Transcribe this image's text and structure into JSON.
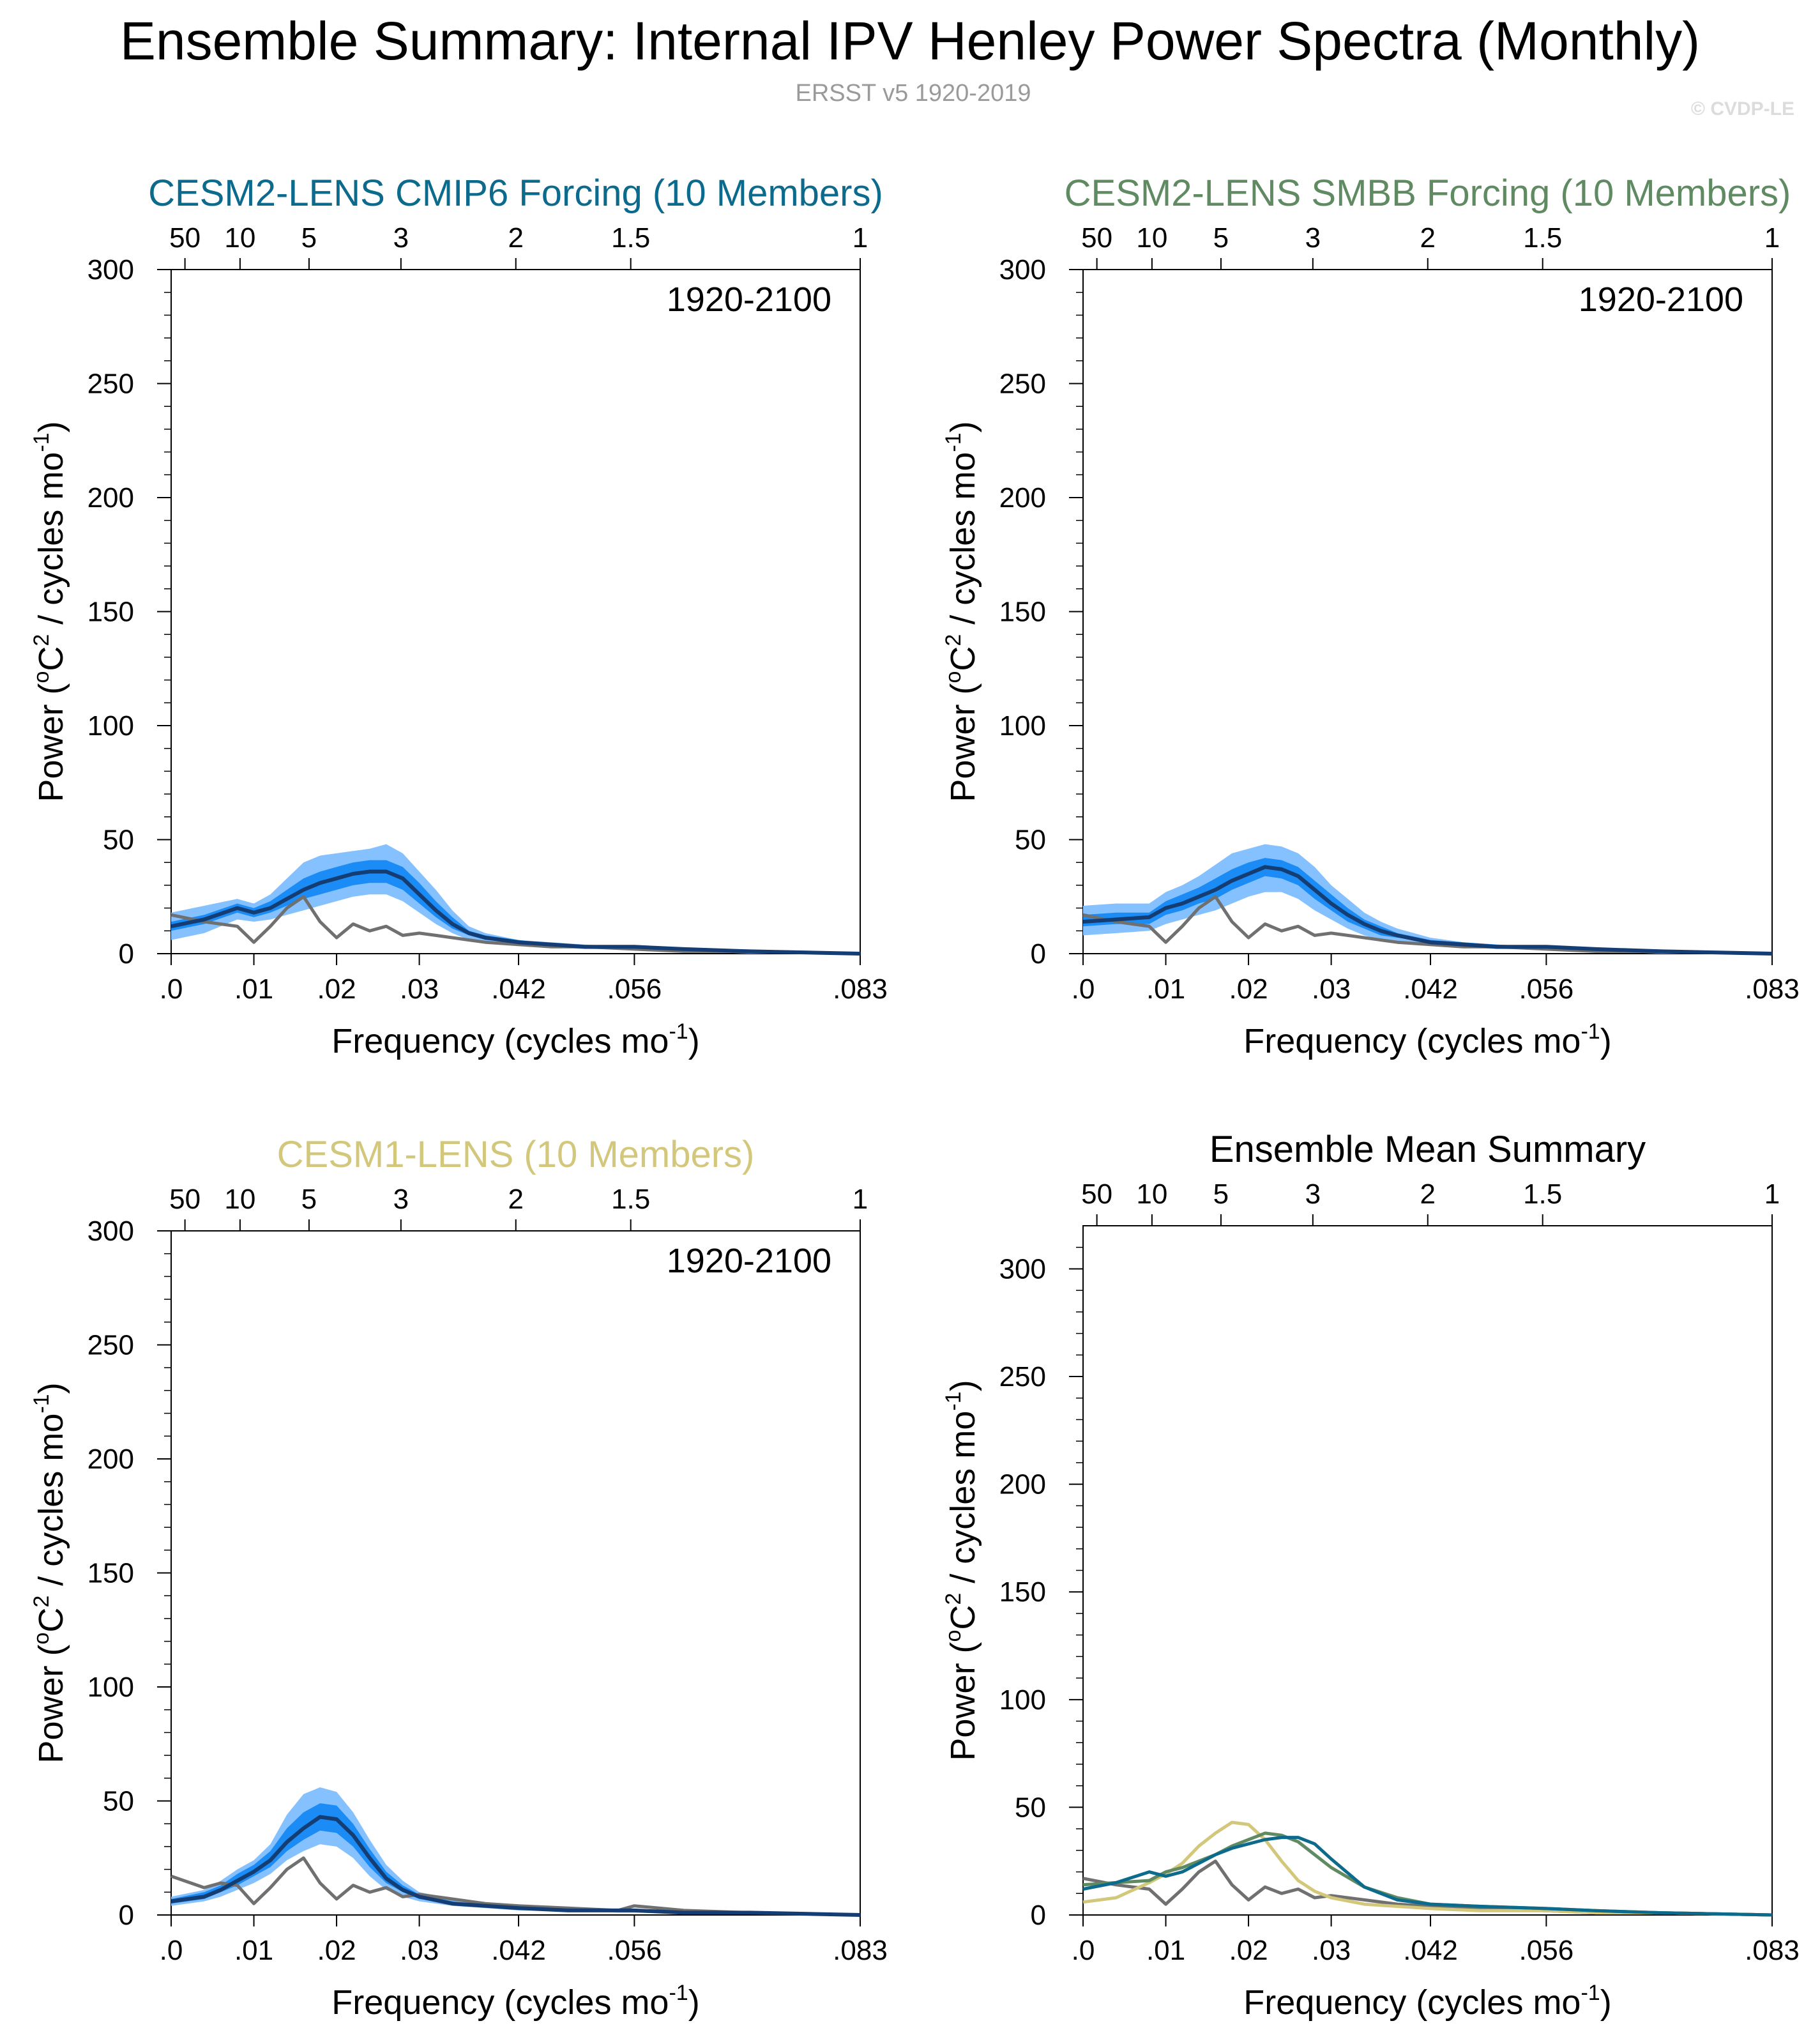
{
  "figure": {
    "title": "Ensemble Summary: Internal IPV Henley Power Spectra (Monthly)",
    "subtitle": "ERSST v5 1920-2019",
    "credit": "© CVDP-LE"
  },
  "colors": {
    "obs": "#707070",
    "cmip6": "#0c6a8c",
    "smbb": "#5f8a62",
    "cesm1": "#d2c77b",
    "band_outer": "#85c1ff",
    "band_inner": "#1b8cf5",
    "mean_line": "#133d73"
  },
  "chart_data": [
    {
      "type": "line",
      "id": "cmip6",
      "title": "CESM2-LENS CMIP6 Forcing (10 Members)",
      "title_color": "#0c6a8c",
      "period_label": "1920-2100",
      "xlabel": "Frequency (cycles mo",
      "xlabel_sup": "-1",
      "xlabel_end": ")",
      "ylabel_a": "Power (",
      "ylabel_sup1": "o",
      "ylabel_b": "C",
      "ylabel_sup2": "2",
      "ylabel_c": " / cycles mo",
      "ylabel_sup3": "-1",
      "ylabel_d": ")",
      "xlim": [
        0,
        0.0833
      ],
      "ylim": [
        0,
        300
      ],
      "x_ticks": [
        {
          "value": 0,
          "label": ".0"
        },
        {
          "value": 0.01,
          "label": ".01"
        },
        {
          "value": 0.02,
          "label": ".02"
        },
        {
          "value": 0.03,
          "label": ".03"
        },
        {
          "value": 0.042,
          "label": ".042"
        },
        {
          "value": 0.056,
          "label": ".056"
        },
        {
          "value": 0.0833,
          "label": ".083"
        }
      ],
      "top_ticks": [
        {
          "value": 0.00167,
          "label": "50"
        },
        {
          "value": 0.00833,
          "label": "10"
        },
        {
          "value": 0.01667,
          "label": "5"
        },
        {
          "value": 0.02778,
          "label": "3"
        },
        {
          "value": 0.04167,
          "label": "2"
        },
        {
          "value": 0.05556,
          "label": "1.5"
        },
        {
          "value": 0.0833,
          "label": "1"
        }
      ],
      "y_ticks": [
        0,
        50,
        100,
        150,
        200,
        250,
        300
      ],
      "x": [
        0.0,
        0.004,
        0.008,
        0.01,
        0.012,
        0.014,
        0.016,
        0.018,
        0.02,
        0.022,
        0.024,
        0.026,
        0.028,
        0.03,
        0.032,
        0.034,
        0.036,
        0.038,
        0.042,
        0.046,
        0.05,
        0.056,
        0.062,
        0.07,
        0.0833
      ],
      "observed": [
        17,
        14,
        12,
        5,
        12,
        20,
        25,
        14,
        7,
        13,
        10,
        12,
        8,
        9,
        8,
        7,
        6,
        5,
        4,
        3,
        3,
        2,
        1,
        1,
        0
      ],
      "ens_mean": [
        12,
        15,
        20,
        18,
        20,
        24,
        28,
        31,
        33,
        35,
        36,
        36,
        33,
        26,
        19,
        13,
        9,
        7,
        5,
        4,
        3,
        3,
        2,
        1,
        0
      ],
      "p10": [
        6,
        9,
        15,
        14,
        15,
        17,
        19,
        21,
        23,
        25,
        26,
        26,
        23,
        18,
        13,
        9,
        6,
        5,
        4,
        3,
        2,
        2,
        1,
        0,
        0
      ],
      "p90": [
        18,
        21,
        24,
        22,
        26,
        33,
        40,
        43,
        44,
        45,
        46,
        48,
        44,
        36,
        28,
        19,
        12,
        9,
        6,
        5,
        4,
        3,
        2,
        1,
        0
      ],
      "p25": [
        10,
        13,
        18,
        16,
        18,
        21,
        24,
        26,
        28,
        30,
        31,
        31,
        28,
        22,
        16,
        11,
        8,
        6,
        5,
        3,
        3,
        2,
        1,
        1,
        0
      ],
      "p75": [
        14,
        17,
        22,
        20,
        23,
        28,
        33,
        36,
        38,
        40,
        41,
        41,
        38,
        31,
        23,
        16,
        10,
        8,
        6,
        4,
        3,
        3,
        2,
        1,
        0
      ]
    },
    {
      "type": "line",
      "id": "smbb",
      "title": "CESM2-LENS SMBB Forcing (10 Members)",
      "title_color": "#5f8a62",
      "period_label": "1920-2100",
      "xlabel": "Frequency (cycles mo",
      "xlabel_sup": "-1",
      "xlabel_end": ")",
      "ylabel_a": "Power (",
      "ylabel_sup1": "o",
      "ylabel_b": "C",
      "ylabel_sup2": "2",
      "ylabel_c": " / cycles mo",
      "ylabel_sup3": "-1",
      "ylabel_d": ")",
      "xlim": [
        0,
        0.0833
      ],
      "ylim": [
        0,
        300
      ],
      "x_ticks": [
        {
          "value": 0,
          "label": ".0"
        },
        {
          "value": 0.01,
          "label": ".01"
        },
        {
          "value": 0.02,
          "label": ".02"
        },
        {
          "value": 0.03,
          "label": ".03"
        },
        {
          "value": 0.042,
          "label": ".042"
        },
        {
          "value": 0.056,
          "label": ".056"
        },
        {
          "value": 0.0833,
          "label": ".083"
        }
      ],
      "top_ticks": [
        {
          "value": 0.00167,
          "label": "50"
        },
        {
          "value": 0.00833,
          "label": "10"
        },
        {
          "value": 0.01667,
          "label": "5"
        },
        {
          "value": 0.02778,
          "label": "3"
        },
        {
          "value": 0.04167,
          "label": "2"
        },
        {
          "value": 0.05556,
          "label": "1.5"
        },
        {
          "value": 0.0833,
          "label": "1"
        }
      ],
      "y_ticks": [
        0,
        50,
        100,
        150,
        200,
        250,
        300
      ],
      "x": [
        0.0,
        0.004,
        0.008,
        0.01,
        0.012,
        0.014,
        0.016,
        0.018,
        0.02,
        0.022,
        0.024,
        0.026,
        0.028,
        0.03,
        0.032,
        0.034,
        0.036,
        0.038,
        0.042,
        0.046,
        0.05,
        0.056,
        0.062,
        0.07,
        0.0833
      ],
      "observed": [
        17,
        14,
        12,
        5,
        12,
        20,
        25,
        14,
        7,
        13,
        10,
        12,
        8,
        9,
        8,
        7,
        6,
        5,
        4,
        3,
        3,
        2,
        1,
        1,
        0
      ],
      "ens_mean": [
        14,
        15,
        16,
        20,
        22,
        25,
        28,
        32,
        35,
        38,
        37,
        34,
        28,
        22,
        17,
        13,
        10,
        8,
        5,
        4,
        3,
        3,
        2,
        1,
        0
      ],
      "p10": [
        8,
        9,
        10,
        13,
        15,
        17,
        19,
        22,
        25,
        27,
        27,
        24,
        19,
        15,
        11,
        8,
        6,
        5,
        4,
        3,
        2,
        2,
        1,
        0,
        0
      ],
      "p90": [
        21,
        22,
        22,
        27,
        30,
        34,
        39,
        44,
        46,
        48,
        47,
        44,
        38,
        30,
        24,
        18,
        14,
        11,
        7,
        5,
        4,
        3,
        2,
        1,
        0
      ],
      "p25": [
        12,
        13,
        13,
        17,
        19,
        22,
        24,
        28,
        31,
        34,
        33,
        30,
        24,
        19,
        14,
        11,
        8,
        7,
        5,
        4,
        3,
        2,
        2,
        1,
        0
      ],
      "p75": [
        17,
        18,
        18,
        23,
        26,
        29,
        33,
        37,
        40,
        42,
        41,
        38,
        32,
        26,
        20,
        15,
        12,
        9,
        6,
        5,
        4,
        3,
        2,
        1,
        0
      ]
    },
    {
      "type": "line",
      "id": "cesm1",
      "title": "CESM1-LENS (10 Members)",
      "title_color": "#d2c77b",
      "period_label": "1920-2100",
      "xlabel": "Frequency (cycles mo",
      "xlabel_sup": "-1",
      "xlabel_end": ")",
      "ylabel_a": "Power (",
      "ylabel_sup1": "o",
      "ylabel_b": "C",
      "ylabel_sup2": "2",
      "ylabel_c": " / cycles mo",
      "ylabel_sup3": "-1",
      "ylabel_d": ")",
      "xlim": [
        0,
        0.0833
      ],
      "ylim": [
        0,
        300
      ],
      "x_ticks": [
        {
          "value": 0,
          "label": ".0"
        },
        {
          "value": 0.01,
          "label": ".01"
        },
        {
          "value": 0.02,
          "label": ".02"
        },
        {
          "value": 0.03,
          "label": ".03"
        },
        {
          "value": 0.042,
          "label": ".042"
        },
        {
          "value": 0.056,
          "label": ".056"
        },
        {
          "value": 0.0833,
          "label": ".083"
        }
      ],
      "top_ticks": [
        {
          "value": 0.00167,
          "label": "50"
        },
        {
          "value": 0.00833,
          "label": "10"
        },
        {
          "value": 0.01667,
          "label": "5"
        },
        {
          "value": 0.02778,
          "label": "3"
        },
        {
          "value": 0.04167,
          "label": "2"
        },
        {
          "value": 0.05556,
          "label": "1.5"
        },
        {
          "value": 0.0833,
          "label": "1"
        }
      ],
      "y_ticks": [
        0,
        50,
        100,
        150,
        200,
        250,
        300
      ],
      "x": [
        0.0,
        0.004,
        0.006,
        0.008,
        0.01,
        0.012,
        0.014,
        0.016,
        0.018,
        0.02,
        0.022,
        0.024,
        0.026,
        0.028,
        0.03,
        0.034,
        0.038,
        0.042,
        0.048,
        0.054,
        0.056,
        0.062,
        0.07,
        0.0833
      ],
      "observed": [
        17,
        12,
        14,
        13,
        5,
        12,
        20,
        25,
        14,
        7,
        13,
        10,
        12,
        8,
        9,
        7,
        5,
        4,
        3,
        2,
        4,
        2,
        1,
        0
      ],
      "ens_mean": [
        6,
        8,
        11,
        15,
        19,
        24,
        32,
        38,
        43,
        42,
        35,
        25,
        16,
        11,
        8,
        5,
        4,
        3,
        2,
        2,
        2,
        1,
        1,
        0
      ],
      "p10": [
        4,
        6,
        8,
        11,
        14,
        18,
        24,
        28,
        31,
        30,
        25,
        17,
        11,
        8,
        6,
        4,
        3,
        2,
        2,
        1,
        1,
        1,
        1,
        0
      ],
      "p90": [
        8,
        11,
        15,
        20,
        24,
        31,
        44,
        53,
        56,
        54,
        45,
        33,
        22,
        15,
        10,
        7,
        5,
        4,
        3,
        2,
        2,
        2,
        1,
        0
      ],
      "p25": [
        5,
        7,
        10,
        13,
        17,
        21,
        28,
        33,
        37,
        36,
        30,
        21,
        14,
        10,
        7,
        5,
        4,
        3,
        2,
        2,
        2,
        1,
        1,
        0
      ],
      "p75": [
        7,
        10,
        13,
        18,
        22,
        28,
        38,
        45,
        49,
        48,
        40,
        29,
        19,
        13,
        9,
        6,
        4,
        3,
        2,
        2,
        2,
        1,
        1,
        0
      ]
    },
    {
      "type": "line",
      "id": "summary",
      "title": "Ensemble Mean Summary",
      "title_color": "#000000",
      "xlabel": "Frequency (cycles mo",
      "xlabel_sup": "-1",
      "xlabel_end": ")",
      "ylabel_a": "Power (",
      "ylabel_sup1": "o",
      "ylabel_b": "C",
      "ylabel_sup2": "2",
      "ylabel_c": " / cycles mo",
      "ylabel_sup3": "-1",
      "ylabel_d": ")",
      "xlim": [
        0,
        0.0833
      ],
      "ylim": [
        0,
        320
      ],
      "x_ticks": [
        {
          "value": 0,
          "label": ".0"
        },
        {
          "value": 0.01,
          "label": ".01"
        },
        {
          "value": 0.02,
          "label": ".02"
        },
        {
          "value": 0.03,
          "label": ".03"
        },
        {
          "value": 0.042,
          "label": ".042"
        },
        {
          "value": 0.056,
          "label": ".056"
        },
        {
          "value": 0.0833,
          "label": ".083"
        }
      ],
      "top_ticks": [
        {
          "value": 0.00167,
          "label": "50"
        },
        {
          "value": 0.00833,
          "label": "10"
        },
        {
          "value": 0.01667,
          "label": "5"
        },
        {
          "value": 0.02778,
          "label": "3"
        },
        {
          "value": 0.04167,
          "label": "2"
        },
        {
          "value": 0.05556,
          "label": "1.5"
        },
        {
          "value": 0.0833,
          "label": "1"
        }
      ],
      "y_ticks": [
        0,
        50,
        100,
        150,
        200,
        250,
        300
      ],
      "series": [
        {
          "name": "ERSST v5",
          "color": "#707070",
          "x": [
            0.0,
            0.004,
            0.008,
            0.01,
            0.012,
            0.014,
            0.016,
            0.018,
            0.02,
            0.022,
            0.024,
            0.026,
            0.028,
            0.03,
            0.034,
            0.038,
            0.042,
            0.048,
            0.056,
            0.062,
            0.07,
            0.0833
          ],
          "values": [
            17,
            14,
            12,
            5,
            12,
            20,
            25,
            14,
            7,
            13,
            10,
            12,
            8,
            9,
            7,
            5,
            4,
            3,
            2,
            1,
            1,
            0
          ]
        },
        {
          "name": "CESM1-LENS",
          "color": "#d2c77b",
          "x": [
            0.0,
            0.004,
            0.008,
            0.01,
            0.012,
            0.014,
            0.016,
            0.018,
            0.02,
            0.022,
            0.024,
            0.026,
            0.028,
            0.03,
            0.034,
            0.038,
            0.042,
            0.048,
            0.056,
            0.062,
            0.07,
            0.0833
          ],
          "values": [
            6,
            8,
            15,
            19,
            24,
            32,
            38,
            43,
            42,
            35,
            25,
            16,
            11,
            8,
            5,
            4,
            3,
            2,
            2,
            1,
            1,
            0
          ]
        },
        {
          "name": "CESM2-LENS SMBB Forcing",
          "color": "#5f8a62",
          "x": [
            0.0,
            0.004,
            0.008,
            0.01,
            0.012,
            0.014,
            0.016,
            0.018,
            0.02,
            0.022,
            0.024,
            0.026,
            0.028,
            0.03,
            0.034,
            0.038,
            0.042,
            0.048,
            0.056,
            0.062,
            0.07,
            0.0833
          ],
          "values": [
            14,
            15,
            16,
            20,
            22,
            25,
            28,
            32,
            35,
            38,
            37,
            34,
            28,
            22,
            13,
            8,
            5,
            4,
            3,
            2,
            1,
            0
          ]
        },
        {
          "name": "CESM2-LENS CMIP6 Forcing",
          "color": "#0c6a8c",
          "x": [
            0.0,
            0.004,
            0.008,
            0.01,
            0.012,
            0.014,
            0.016,
            0.018,
            0.02,
            0.022,
            0.024,
            0.026,
            0.028,
            0.03,
            0.034,
            0.038,
            0.042,
            0.048,
            0.056,
            0.062,
            0.07,
            0.0833
          ],
          "values": [
            12,
            15,
            20,
            18,
            20,
            24,
            28,
            31,
            33,
            35,
            36,
            36,
            33,
            26,
            13,
            7,
            5,
            4,
            3,
            2,
            1,
            0
          ]
        }
      ]
    }
  ]
}
